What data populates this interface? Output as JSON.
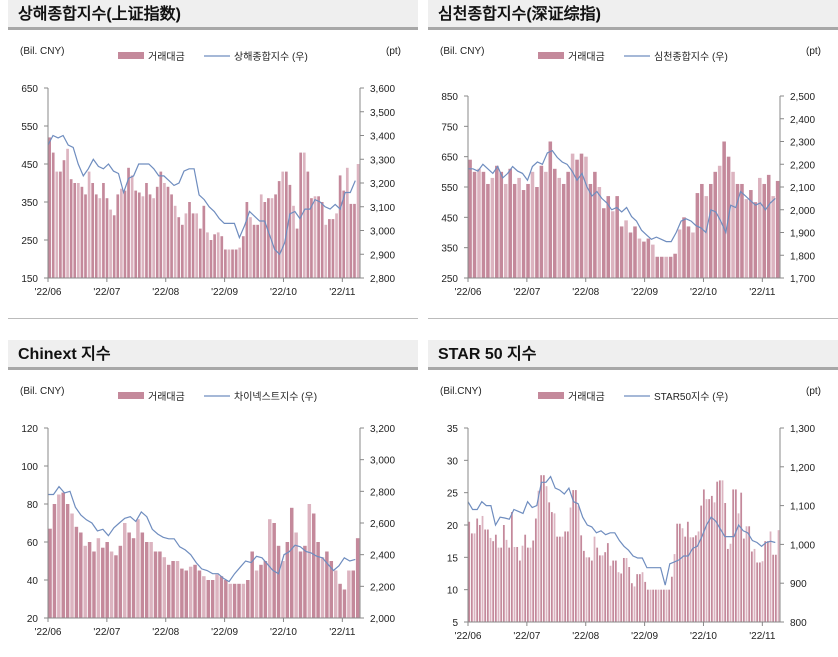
{
  "chart_data": [
    {
      "type": "bar+line",
      "title": "상해종합지수(上证指数)",
      "left_unit": "(Bil. CNY)",
      "right_unit": "(pt)",
      "legend": [
        "거래대금",
        "상해종합지수 (우)"
      ],
      "left_ylim": [
        150,
        650
      ],
      "left_ticks": [
        "650",
        "550",
        "450",
        "350",
        "250",
        "150"
      ],
      "right_ylim": [
        2800,
        3600
      ],
      "right_ticks": [
        "3,600",
        "3,500",
        "3,400",
        "3,300",
        "3,200",
        "3,100",
        "3,000",
        "2,900",
        "2,800"
      ],
      "x_labels": [
        "'22/06",
        "'22/07",
        "'22/08",
        "'22/09",
        "'22/10",
        "'22/11"
      ],
      "bars": [
        520,
        480,
        430,
        430,
        460,
        490,
        410,
        400,
        400,
        390,
        370,
        430,
        400,
        370,
        360,
        400,
        360,
        330,
        315,
        370,
        385,
        380,
        440,
        420,
        380,
        375,
        365,
        400,
        370,
        360,
        390,
        430,
        400,
        390,
        370,
        340,
        310,
        290,
        320,
        350,
        320,
        320,
        280,
        340,
        270,
        250,
        265,
        270,
        260,
        225,
        225,
        225,
        225,
        230,
        260,
        350,
        310,
        290,
        290,
        370,
        350,
        360,
        360,
        370,
        405,
        430,
        430,
        395,
        340,
        280,
        480,
        480,
        430,
        360,
        365,
        365,
        350,
        290,
        305,
        305,
        320,
        420,
        380,
        440,
        345,
        345,
        450
      ],
      "line": [
        3360,
        3400,
        3390,
        3400,
        3360,
        3350,
        3280,
        3230,
        3260,
        3300,
        3270,
        3260,
        3280,
        3250,
        3240,
        3160,
        3220,
        3230,
        3280,
        3280,
        3280,
        3260,
        3230,
        3230,
        3210,
        3190,
        3200,
        3250,
        3260,
        3260,
        3150,
        3130,
        3100,
        3080,
        3050,
        3030,
        3030,
        3030,
        2970,
        3020,
        3080,
        3060,
        3040,
        3040,
        2980,
        2920,
        2900,
        2950,
        3070,
        3080,
        3050,
        3090,
        3090,
        3130,
        3120,
        3100,
        3090,
        3110,
        3090,
        3160,
        3160,
        3210
      ]
    },
    {
      "type": "bar+line",
      "title": "심천종합지수(深证综指)",
      "left_unit": "(Bil.  CNY)",
      "right_unit": "(pt)",
      "legend": [
        "거래대금",
        "심천종합지수 (우)"
      ],
      "left_ylim": [
        250,
        850
      ],
      "left_ticks": [
        "850",
        "750",
        "650",
        "550",
        "450",
        "350",
        "250"
      ],
      "right_ylim": [
        1700,
        2500
      ],
      "right_ticks": [
        "2,500",
        "2,400",
        "2,300",
        "2,200",
        "2,100",
        "2,000",
        "1,900",
        "1,800",
        "1,700"
      ],
      "x_labels": [
        "'22/06",
        "'22/07",
        "'22/08",
        "'22/09",
        "'22/10",
        "'22/11"
      ],
      "bars": [
        640,
        600,
        610,
        600,
        560,
        580,
        620,
        600,
        560,
        610,
        560,
        580,
        540,
        560,
        600,
        550,
        620,
        600,
        700,
        610,
        580,
        560,
        600,
        660,
        640,
        660,
        650,
        560,
        600,
        550,
        480,
        520,
        470,
        520,
        420,
        440,
        400,
        420,
        380,
        370,
        380,
        360,
        320,
        320,
        320,
        320,
        330,
        410,
        450,
        420,
        400,
        530,
        560,
        520,
        560,
        600,
        620,
        700,
        650,
        600,
        560,
        560,
        510,
        540,
        500,
        580,
        560,
        590,
        520,
        570
      ],
      "line": [
        2180,
        2180,
        2170,
        2200,
        2180,
        2160,
        2190,
        2140,
        2160,
        2190,
        2170,
        2160,
        2130,
        2190,
        2210,
        2200,
        2250,
        2260,
        2230,
        2210,
        2200,
        2170,
        2130,
        2160,
        2100,
        2060,
        2080,
        2050,
        2030,
        2000,
        2010,
        1990,
        2010,
        1970,
        1950,
        1910,
        1890,
        1870,
        1880,
        1870,
        1860,
        1860,
        1900,
        1950,
        1960,
        1950,
        1930,
        1920,
        1900,
        2000,
        1990,
        1950,
        1900,
        2020,
        2010,
        2080,
        2060,
        2040,
        2020,
        2030,
        2000,
        2030,
        2050
      ]
    },
    {
      "type": "bar+line",
      "title": "Chinext 지수",
      "left_unit": "(Bil. CNY)",
      "right_unit": "",
      "legend": [
        "거래대금",
        "차이넥스트지수 (우)"
      ],
      "left_ylim": [
        20,
        120
      ],
      "left_ticks": [
        "120",
        "100",
        "80",
        "60",
        "40",
        "20"
      ],
      "right_ylim": [
        2000,
        3200
      ],
      "right_ticks": [
        "3,200",
        "3,000",
        "2,800",
        "2,600",
        "2,400",
        "2,200",
        "2,000"
      ],
      "x_labels": [
        "'22/06",
        "'22/07",
        "'22/08",
        "'22/09",
        "'22/10",
        "'22/11"
      ],
      "bars": [
        67,
        80,
        85,
        86,
        80,
        75,
        68,
        65,
        58,
        60,
        55,
        62,
        57,
        60,
        55,
        53,
        58,
        70,
        65,
        62,
        72,
        65,
        60,
        60,
        55,
        55,
        52,
        48,
        50,
        50,
        46,
        45,
        47,
        48,
        45,
        42,
        40,
        40,
        43,
        42,
        40,
        38,
        38,
        38,
        38,
        40,
        55,
        45,
        48,
        50,
        72,
        70,
        58,
        50,
        60,
        78,
        65,
        55,
        58,
        80,
        75,
        60,
        52,
        55,
        50,
        45,
        38,
        35,
        45,
        45,
        62
      ],
      "line": [
        2780,
        2780,
        2830,
        2790,
        2800,
        2700,
        2650,
        2620,
        2600,
        2550,
        2560,
        2520,
        2570,
        2600,
        2630,
        2640,
        2610,
        2670,
        2640,
        2560,
        2530,
        2510,
        2500,
        2500,
        2450,
        2430,
        2400,
        2350,
        2310,
        2300,
        2280,
        2280,
        2250,
        2230,
        2280,
        2320,
        2360,
        2350,
        2390,
        2380,
        2340,
        2300,
        2280,
        2400,
        2420,
        2460,
        2450,
        2420,
        2410,
        2390,
        2380,
        2340,
        2300,
        2330,
        2380,
        2360,
        2370
      ]
    },
    {
      "type": "bar+line",
      "title": "STAR 50 지수",
      "left_unit": "(Bil.CNY)",
      "right_unit": "(pt)",
      "legend": [
        "거래대금",
        "STAR50지수 (우)"
      ],
      "left_ylim": [
        5,
        35
      ],
      "left_ticks": [
        "35",
        "30",
        "25",
        "20",
        "15",
        "10",
        "5"
      ],
      "right_ylim": [
        800,
        1300
      ],
      "right_ticks": [
        "1,300",
        "1,200",
        "1,100",
        "1,000",
        "900",
        "800"
      ],
      "x_labels": [
        "'22/06",
        "'22/07",
        "'22/08",
        "'22/09",
        "'22/10",
        "'22/11"
      ],
      "bars": [
        20.5,
        18.7,
        18.7,
        21,
        20,
        21.4,
        19.3,
        19.3,
        18,
        17.5,
        18.5,
        16.5,
        16.5,
        20,
        17.7,
        16.5,
        22,
        16.6,
        16.6,
        14.5,
        16.8,
        18.5,
        16.5,
        16.5,
        17.6,
        21,
        25.3,
        27.7,
        27.7,
        26,
        23.5,
        22,
        21.8,
        18.2,
        18.2,
        18.2,
        19,
        19,
        22.7,
        25.4,
        25.4,
        23,
        18.4,
        16,
        15,
        15,
        14.5,
        18.2,
        16.5,
        15.3,
        15.3,
        15.8,
        17.2,
        13.7,
        14.5,
        14.5,
        12.7,
        12.5,
        14.9,
        14.9,
        13.5,
        11,
        10.5,
        12.4,
        12.4,
        12.7,
        11.2,
        10,
        10,
        10,
        10,
        10,
        10,
        10,
        10,
        10,
        12,
        15.5,
        20.2,
        20.2,
        19.5,
        18.2,
        20.5,
        18.1,
        18.1,
        18.4,
        19,
        23,
        25.5,
        24,
        24,
        24.5,
        23.5,
        26.7,
        26.9,
        26.9,
        23.4,
        16.3,
        17.1,
        25.5,
        25.5,
        21.8,
        25,
        17.9,
        19.8,
        19.8,
        15.9,
        16.3,
        14.2,
        14.2,
        14.4,
        17.5,
        17.5,
        19,
        15.4,
        15.4,
        19.2
      ],
      "line": [
        1110,
        1090,
        1090,
        1110,
        1100,
        1100,
        1050,
        1070,
        1068,
        1065,
        1090,
        1085,
        1080,
        1110,
        1095,
        1100,
        1160,
        1160,
        1175,
        1145,
        1140,
        1130,
        1145,
        1110,
        1105,
        1070,
        1050,
        1045,
        1030,
        1035,
        1025,
        1030,
        1030,
        1010,
        995,
        985,
        970,
        965,
        965,
        940,
        940,
        940,
        940,
        895,
        950,
        955,
        960,
        970,
        970,
        990,
        995,
        1020,
        1050,
        1070,
        1060,
        1040,
        1020,
        1020,
        1020,
        1050,
        1035,
        1030,
        1010,
        1005,
        995,
        1005,
        1008,
        1005
      ]
    }
  ],
  "colors": {
    "bar": "#c4899b",
    "bar_light": "#dcb4c0",
    "line": "#6f8dbf",
    "axis": "#888888"
  }
}
